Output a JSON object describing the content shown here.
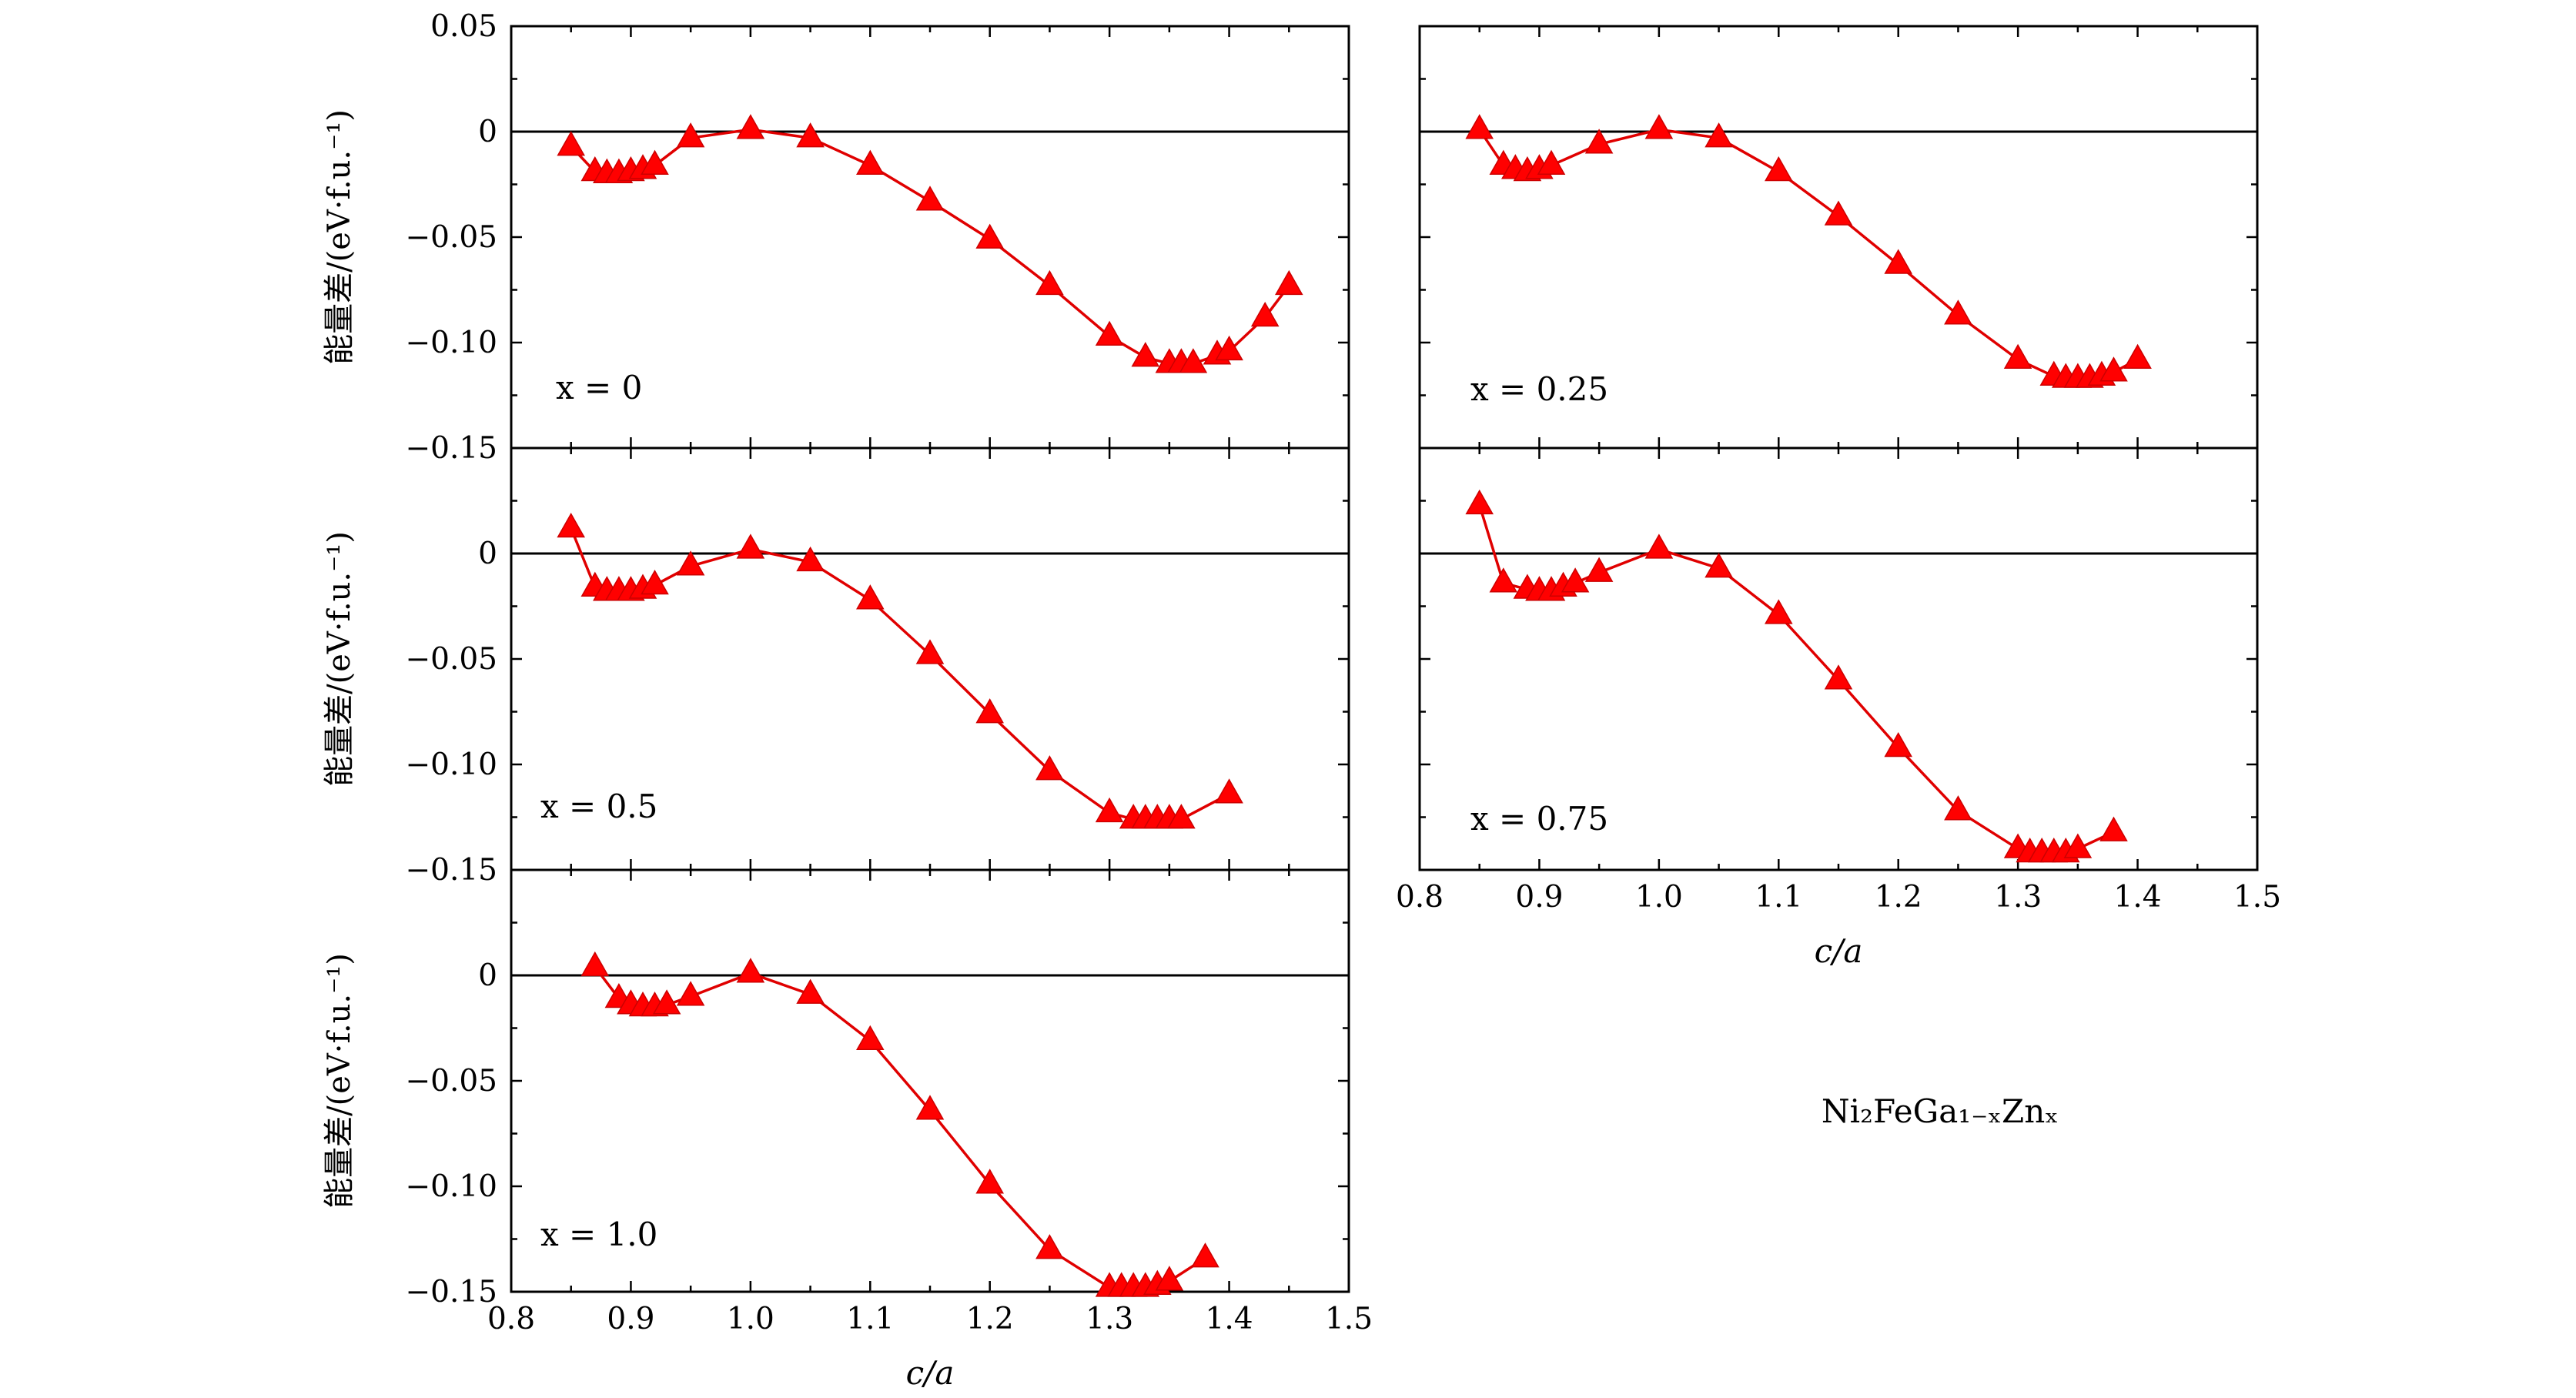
{
  "figure": {
    "y_axis_label": "能量差/(eV·f.u.⁻¹)",
    "x_axis_label": "c/a",
    "formula": "Ni₂FeGa₁₋ₓZnₓ",
    "marker_color": "#ff0000",
    "line_color": "#e00000"
  },
  "chart_data": [
    {
      "type": "line",
      "panel_label": "x = 0",
      "xlim": [
        0.8,
        1.5
      ],
      "ylim": [
        -0.15,
        0.05
      ],
      "yticks": [
        "0.05",
        "0",
        "−0.05",
        "−0.10",
        "−0.15"
      ],
      "xticks": [],
      "series": [
        {
          "x": [
            0.85,
            0.87,
            0.88,
            0.89,
            0.9,
            0.91,
            0.92,
            0.95,
            1.0,
            1.05,
            1.1,
            1.15,
            1.2,
            1.25,
            1.3,
            1.33,
            1.35,
            1.36,
            1.37,
            1.39,
            1.4,
            1.43,
            1.45
          ],
          "y": [
            -0.007,
            -0.019,
            -0.02,
            -0.02,
            -0.019,
            -0.018,
            -0.016,
            -0.003,
            0.001,
            -0.003,
            -0.016,
            -0.033,
            -0.051,
            -0.073,
            -0.097,
            -0.107,
            -0.11,
            -0.11,
            -0.11,
            -0.106,
            -0.104,
            -0.088,
            -0.073
          ]
        }
      ]
    },
    {
      "type": "line",
      "panel_label": "x = 0.25",
      "xlim": [
        0.8,
        1.5
      ],
      "ylim": [
        -0.15,
        0.05
      ],
      "yticks": [],
      "xticks": [],
      "series": [
        {
          "x": [
            0.85,
            0.87,
            0.88,
            0.89,
            0.9,
            0.91,
            0.95,
            1.0,
            1.05,
            1.1,
            1.15,
            1.2,
            1.25,
            1.3,
            1.33,
            1.34,
            1.35,
            1.36,
            1.37,
            1.38,
            1.4
          ],
          "y": [
            0.001,
            -0.016,
            -0.018,
            -0.019,
            -0.018,
            -0.016,
            -0.006,
            0.001,
            -0.003,
            -0.019,
            -0.04,
            -0.063,
            -0.087,
            -0.108,
            -0.116,
            -0.117,
            -0.117,
            -0.117,
            -0.116,
            -0.114,
            -0.108
          ]
        }
      ]
    },
    {
      "type": "line",
      "panel_label": "x = 0.5",
      "xlim": [
        0.8,
        1.5
      ],
      "ylim": [
        -0.15,
        0.05
      ],
      "yticks": [
        "0",
        "−0.05",
        "−0.10",
        "−0.15"
      ],
      "xticks": [],
      "series": [
        {
          "x": [
            0.85,
            0.87,
            0.88,
            0.89,
            0.9,
            0.91,
            0.92,
            0.95,
            1.0,
            1.05,
            1.1,
            1.15,
            1.2,
            1.25,
            1.3,
            1.32,
            1.33,
            1.34,
            1.35,
            1.36,
            1.4
          ],
          "y": [
            0.012,
            -0.016,
            -0.018,
            -0.018,
            -0.018,
            -0.017,
            -0.015,
            -0.006,
            0.002,
            -0.004,
            -0.022,
            -0.048,
            -0.076,
            -0.103,
            -0.123,
            -0.126,
            -0.126,
            -0.126,
            -0.126,
            -0.126,
            -0.114
          ]
        }
      ]
    },
    {
      "type": "line",
      "panel_label": "x = 0.75",
      "xlim": [
        0.8,
        1.5
      ],
      "ylim": [
        -0.15,
        0.05
      ],
      "yticks": [],
      "xticks": [
        "0.8",
        "0.9",
        "1.0",
        "1.1",
        "1.2",
        "1.3",
        "1.4",
        "1.5"
      ],
      "series": [
        {
          "x": [
            0.85,
            0.87,
            0.89,
            0.9,
            0.91,
            0.92,
            0.93,
            0.95,
            1.0,
            1.05,
            1.1,
            1.15,
            1.2,
            1.25,
            1.3,
            1.31,
            1.32,
            1.33,
            1.34,
            1.35,
            1.38
          ],
          "y": [
            0.023,
            -0.014,
            -0.017,
            -0.018,
            -0.018,
            -0.016,
            -0.014,
            -0.009,
            0.002,
            -0.007,
            -0.029,
            -0.06,
            -0.092,
            -0.122,
            -0.14,
            -0.142,
            -0.142,
            -0.142,
            -0.142,
            -0.14,
            -0.132
          ]
        }
      ]
    },
    {
      "type": "line",
      "panel_label": "x = 1.0",
      "xlim": [
        0.8,
        1.5
      ],
      "ylim": [
        -0.15,
        0.05
      ],
      "yticks": [
        "0",
        "−0.05",
        "−0.10",
        "−0.15"
      ],
      "xticks": [
        "0.8",
        "0.9",
        "1.0",
        "1.1",
        "1.2",
        "1.3",
        "1.4",
        "1.5"
      ],
      "series": [
        {
          "x": [
            0.87,
            0.89,
            0.9,
            0.91,
            0.92,
            0.93,
            0.95,
            1.0,
            1.05,
            1.1,
            1.15,
            1.2,
            1.25,
            1.3,
            1.31,
            1.32,
            1.33,
            1.34,
            1.35,
            1.38
          ],
          "y": [
            0.004,
            -0.011,
            -0.014,
            -0.015,
            -0.015,
            -0.014,
            -0.01,
            0.001,
            -0.009,
            -0.031,
            -0.064,
            -0.099,
            -0.13,
            -0.148,
            -0.148,
            -0.148,
            -0.148,
            -0.147,
            -0.145,
            -0.134
          ]
        }
      ]
    }
  ]
}
